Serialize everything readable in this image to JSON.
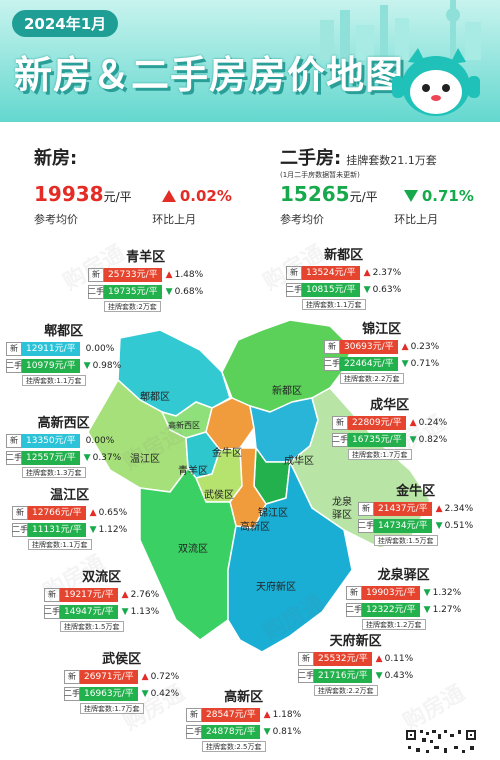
{
  "header": {
    "date": "2024年1月",
    "title": "新房＆二手房房价地图"
  },
  "summary": {
    "new": {
      "label": "新房:",
      "price": "19938",
      "unit": "元/平",
      "price_note": "参考均价",
      "change": "0.02%",
      "change_note": "环比上月"
    },
    "second": {
      "label": "二手房:",
      "listing": "挂牌套数21.1万套",
      "listing_note": "(1月二手房数据暂未更新)",
      "price": "15265",
      "unit": "元/平",
      "price_note": "参考均价",
      "change": "0.71%",
      "change_note": "环比上月"
    }
  },
  "tags": {
    "new": "新",
    "second": "二手"
  },
  "districts": [
    {
      "id": "qingyang",
      "name": "青羊区",
      "new_price": "25733元/平",
      "new_chg": "1.48%",
      "new_dir": "up",
      "sec_price": "19735元/平",
      "sec_chg": "0.68%",
      "sec_dir": "down",
      "listing": "挂牌套数:2万套"
    },
    {
      "id": "xindu",
      "name": "新都区",
      "new_price": "13524元/平",
      "new_chg": "2.37%",
      "new_dir": "up",
      "sec_price": "10815元/平",
      "sec_chg": "0.63%",
      "sec_dir": "down",
      "listing": "挂牌套数:1.1万套"
    },
    {
      "id": "pidu",
      "name": "郫都区",
      "new_price": "12911元/平",
      "new_chg": "0.00%",
      "new_dir": "flat",
      "sec_price": "10979元/平",
      "sec_chg": "0.98%",
      "sec_dir": "down",
      "listing": "挂牌套数:1.1万套"
    },
    {
      "id": "jinjiang",
      "name": "锦江区",
      "new_price": "30693元/平",
      "new_chg": "0.23%",
      "new_dir": "up",
      "sec_price": "22464元/平",
      "sec_chg": "0.71%",
      "sec_dir": "down",
      "listing": "挂牌套数:2.2万套"
    },
    {
      "id": "gaoxinxi",
      "name": "高新西区",
      "new_price": "13350元/平",
      "new_chg": "0.00%",
      "new_dir": "flat",
      "sec_price": "12557元/平",
      "sec_chg": "0.37%",
      "sec_dir": "down",
      "listing": "挂牌套数:1.3万套"
    },
    {
      "id": "chenghua",
      "name": "成华区",
      "new_price": "22809元/平",
      "new_chg": "0.24%",
      "new_dir": "up",
      "sec_price": "16735元/平",
      "sec_chg": "0.82%",
      "sec_dir": "down",
      "listing": "挂牌套数:1.7万套"
    },
    {
      "id": "wenjiang",
      "name": "温江区",
      "new_price": "12766元/平",
      "new_chg": "0.65%",
      "new_dir": "up",
      "sec_price": "11131元/平",
      "sec_chg": "1.12%",
      "sec_dir": "down",
      "listing": "挂牌套数:1.1万套"
    },
    {
      "id": "jinniu",
      "name": "金牛区",
      "new_price": "21437元/平",
      "new_chg": "2.34%",
      "new_dir": "up",
      "sec_price": "14734元/平",
      "sec_chg": "0.51%",
      "sec_dir": "down",
      "listing": "挂牌套数:1.5万套"
    },
    {
      "id": "shuangliu",
      "name": "双流区",
      "new_price": "19217元/平",
      "new_chg": "2.76%",
      "new_dir": "up",
      "sec_price": "14947元/平",
      "sec_chg": "1.13%",
      "sec_dir": "down",
      "listing": "挂牌套数:1.5万套"
    },
    {
      "id": "longquanyi",
      "name": "龙泉驿区",
      "new_price": "19903元/平",
      "new_chg": "1.32%",
      "new_dir": "down",
      "sec_price": "12322元/平",
      "sec_chg": "1.27%",
      "sec_dir": "down",
      "listing": "挂牌套数:1.2万套"
    },
    {
      "id": "wuhou",
      "name": "武侯区",
      "new_price": "26971元/平",
      "new_chg": "0.72%",
      "new_dir": "up",
      "sec_price": "16963元/平",
      "sec_chg": "0.42%",
      "sec_dir": "down",
      "listing": "挂牌套数:1.7万套"
    },
    {
      "id": "tianfuxin",
      "name": "天府新区",
      "new_price": "25532元/平",
      "new_chg": "0.11%",
      "new_dir": "up",
      "sec_price": "21716元/平",
      "sec_chg": "0.43%",
      "sec_dir": "down",
      "listing": "挂牌套数:2.2万套"
    },
    {
      "id": "gaoxin",
      "name": "高新区",
      "new_price": "28547元/平",
      "new_chg": "1.18%",
      "new_dir": "up",
      "sec_price": "24878元/平",
      "sec_chg": "0.81%",
      "sec_dir": "down",
      "listing": "挂牌套数:2.5万套"
    }
  ],
  "map_labels": {
    "pidu": "郫都区",
    "xindu": "新都区",
    "gaoxinxi": "高新西区",
    "jinniu": "金牛区",
    "chenghua": "成华区",
    "wenjiang": "温江区",
    "qingyang": "青羊区",
    "wuhou": "武侯区",
    "jinjiang": "锦江区",
    "gaoxin": "高新区",
    "longquanyi": "龙泉\n驿区",
    "shuangliu": "双流区",
    "tianfu": "天府新区"
  },
  "watermark": "购房通",
  "colors": {
    "red": "#e32c25",
    "green": "#17a94c",
    "teal": "#1f9e96"
  }
}
